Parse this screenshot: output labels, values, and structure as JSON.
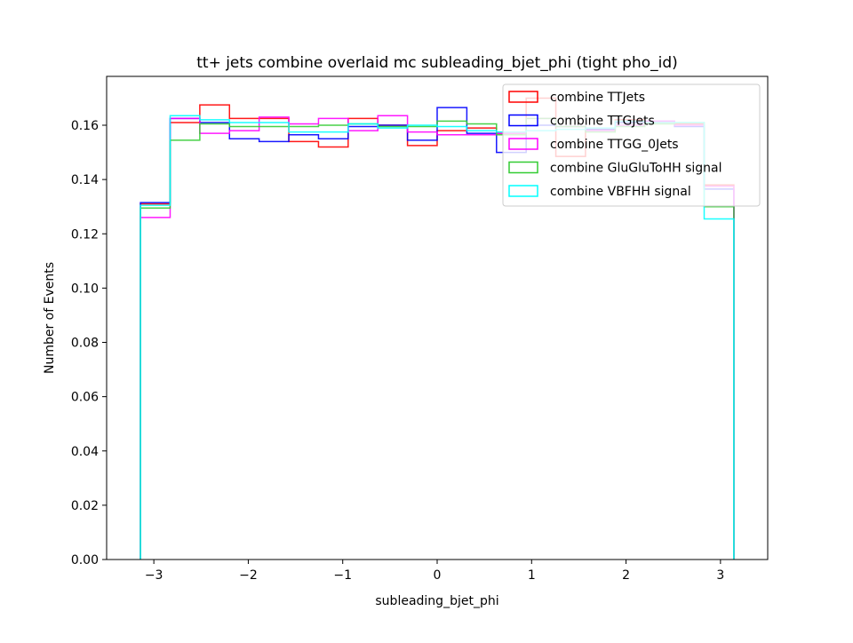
{
  "chart_data": {
    "type": "step",
    "title": "tt+ jets combine overlaid mc subleading_bjet_phi (tight pho_id)",
    "xlabel": "subleading_bjet_phi",
    "ylabel": "Number of Events",
    "xlim": [
      -3.5,
      3.5
    ],
    "ylim": [
      0,
      0.178
    ],
    "xticks": [
      -3,
      -2,
      -1,
      0,
      1,
      2,
      3
    ],
    "xtick_labels": [
      "−3",
      "−2",
      "−1",
      "0",
      "1",
      "2",
      "3"
    ],
    "yticks": [
      0.0,
      0.02,
      0.04,
      0.06,
      0.08,
      0.1,
      0.12,
      0.14,
      0.16
    ],
    "ytick_labels": [
      "0.00",
      "0.02",
      "0.04",
      "0.06",
      "0.08",
      "0.10",
      "0.12",
      "0.14",
      "0.16"
    ],
    "bin_edges": [
      -3.1416,
      -2.8274,
      -2.5133,
      -2.1991,
      -1.885,
      -1.5708,
      -1.2566,
      -0.9425,
      -0.6283,
      -0.3142,
      0.0,
      0.3142,
      0.6283,
      0.9425,
      1.2566,
      1.5708,
      1.885,
      2.1991,
      2.5133,
      2.8274,
      3.1416
    ],
    "legend_position": "top-right",
    "series": [
      {
        "name": "combine TTJets",
        "color": "#ff0000",
        "values": [
          0.131,
          0.161,
          0.1675,
          0.1625,
          0.1625,
          0.154,
          0.152,
          0.1625,
          0.16,
          0.1525,
          0.158,
          0.159,
          0.157,
          0.17,
          0.1485,
          0.1585,
          0.162,
          0.161,
          0.1605,
          0.138
        ]
      },
      {
        "name": "combine TTGJets",
        "color": "#0000ff",
        "values": [
          0.1315,
          0.1625,
          0.161,
          0.155,
          0.154,
          0.1565,
          0.155,
          0.1595,
          0.16,
          0.1545,
          0.1665,
          0.157,
          0.15,
          0.16,
          0.1595,
          0.1585,
          0.161,
          0.1615,
          0.1595,
          0.1365
        ]
      },
      {
        "name": "combine TTGG_0Jets",
        "color": "#ff00ff",
        "values": [
          0.126,
          0.1625,
          0.157,
          0.158,
          0.163,
          0.1605,
          0.1625,
          0.158,
          0.1635,
          0.1575,
          0.1565,
          0.1565,
          0.157,
          0.1625,
          0.1595,
          0.158,
          0.16,
          0.1615,
          0.16,
          0.1375
        ]
      },
      {
        "name": "combine GluGluToHH signal",
        "color": "#33cc33",
        "values": [
          0.1295,
          0.1545,
          0.1605,
          0.1595,
          0.1595,
          0.1595,
          0.16,
          0.1605,
          0.1595,
          0.1595,
          0.1615,
          0.1605,
          0.1565,
          0.1625,
          0.1595,
          0.1575,
          0.1595,
          0.1605,
          0.161,
          0.13
        ]
      },
      {
        "name": "combine VBFHH signal",
        "color": "#00ffff",
        "values": [
          0.1305,
          0.1635,
          0.162,
          0.161,
          0.161,
          0.1575,
          0.1575,
          0.1605,
          0.159,
          0.16,
          0.1595,
          0.158,
          0.1575,
          0.158,
          0.1585,
          0.159,
          0.1615,
          0.161,
          0.161,
          0.1255
        ]
      }
    ]
  }
}
